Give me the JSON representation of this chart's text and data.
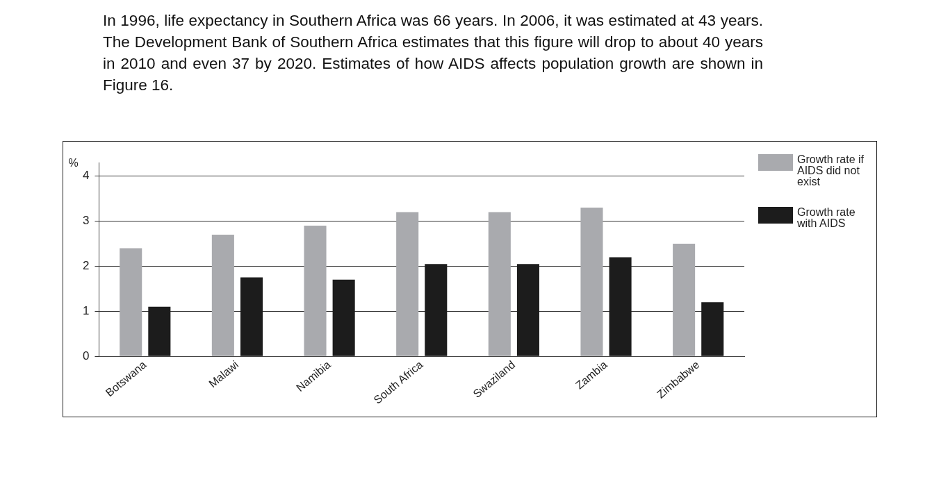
{
  "chart_data": {
    "type": "bar",
    "title": "In 1996, life expectancy in Southern Africa was 66 years. In 2006, it was estimated at 43 years. The Development Bank of Southern Africa estimates that this figure will drop to about 40 years in 2010 and even 37 by 2020. Estimates of how AIDS affects population growth are shown in Figure 16.",
    "ylabel": "%",
    "categories": [
      "Botswana",
      "Malawi",
      "Namibia",
      "South Africa",
      "Swaziland",
      "Zambia",
      "Zimbabwe"
    ],
    "series": [
      {
        "name": "Growth rate if AIDS did not exist",
        "color": "#a9aaae",
        "values": [
          2.4,
          2.7,
          2.9,
          3.2,
          3.2,
          3.3,
          2.5
        ]
      },
      {
        "name": "Growth rate with AIDS",
        "color": "#1c1c1c",
        "values": [
          1.1,
          1.75,
          1.7,
          2.05,
          2.05,
          2.2,
          1.2
        ]
      }
    ],
    "ylim": [
      0,
      4.3
    ],
    "yticks": [
      0,
      1,
      2,
      3,
      4
    ],
    "grid": "y",
    "legend": "top right"
  }
}
